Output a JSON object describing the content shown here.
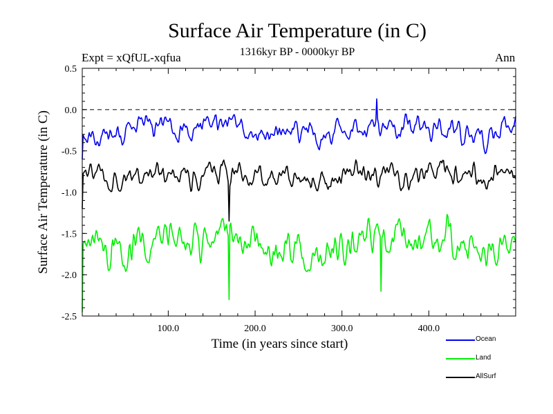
{
  "chart_data": {
    "type": "line",
    "title": "Surface Air Temperature (in C)",
    "subtitle_left": "Expt = xQfUL-xqfua",
    "subtitle_center": "1316kyr BP - 0000kyr BP",
    "subtitle_right": "Ann",
    "xlabel": "Time (in years since start)",
    "ylabel": "Surface Air Temperature (in C)",
    "xlim": [
      1,
      500
    ],
    "ylim": [
      -2.5,
      0.5
    ],
    "x_ticks": [
      100,
      200,
      300,
      400
    ],
    "x_tick_labels": [
      "100.0",
      "200.0",
      "300.0",
      "400.0"
    ],
    "y_ticks": [
      -2.5,
      -2.0,
      -1.5,
      -1.0,
      -0.5,
      0.0,
      0.5
    ],
    "y_tick_labels": [
      "-2.5",
      "-2.0",
      "-1.5",
      "-1.0",
      "-0.5",
      "0.0",
      "0.5"
    ],
    "reference_line": 0.0,
    "legend_position": "bottom-right",
    "series": [
      {
        "name": "Ocean",
        "color": "#0000ee",
        "mean": -0.25,
        "amplitude": 0.13,
        "x": [
          1,
          500
        ]
      },
      {
        "name": "Land",
        "color": "#00ee00",
        "mean": -1.62,
        "amplitude": 0.2,
        "x": [
          1,
          500
        ]
      },
      {
        "name": "AllSurf",
        "color": "#000000",
        "mean": -0.8,
        "amplitude": 0.13,
        "x": [
          1,
          500
        ]
      }
    ],
    "annotations": [
      {
        "series": "Ocean",
        "x": 1,
        "y": -0.6
      },
      {
        "series": "Land",
        "x": 1,
        "y": -2.45
      },
      {
        "series": "AllSurf",
        "x": 1,
        "y": -1.2
      },
      {
        "series": "Land",
        "x": 170,
        "y": -2.3
      },
      {
        "series": "AllSurf",
        "x": 170,
        "y": -1.35
      },
      {
        "series": "Ocean",
        "x": 340,
        "y": 0.13
      },
      {
        "series": "Land",
        "x": 345,
        "y": -2.2
      }
    ]
  }
}
